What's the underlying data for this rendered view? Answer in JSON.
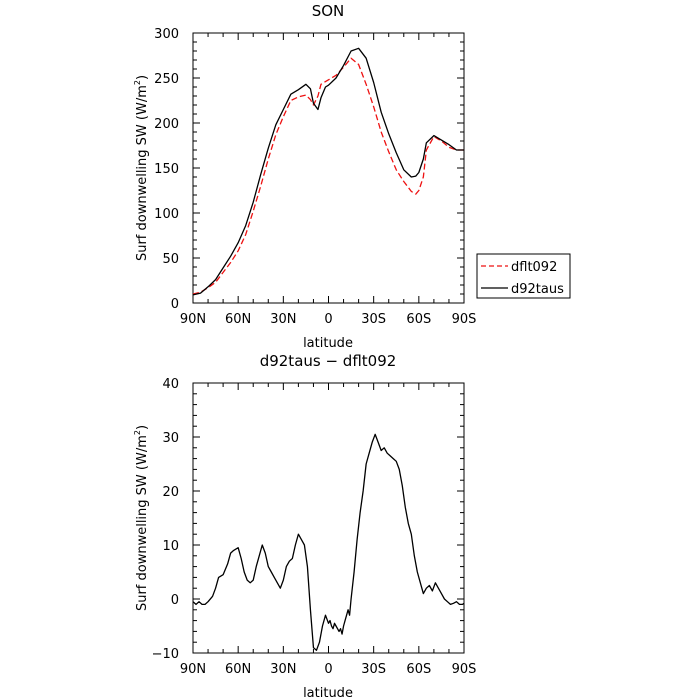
{
  "chart_data": [
    {
      "type": "line",
      "title": "SON",
      "xlabel": "latitude",
      "ylabel": "Surf downwelling SW (W/m²)",
      "ylabel_main": "Surf downwelling SW (W/m",
      "ylabel_sup": "2",
      "ylabel_close": ")",
      "xlim": [
        90,
        -90
      ],
      "ylim": [
        0,
        300
      ],
      "x_ticks": [
        90,
        60,
        30,
        0,
        -30,
        -60,
        -90
      ],
      "x_tick_labels": [
        "90N",
        "60N",
        "30N",
        "0",
        "30S",
        "60S",
        "90S"
      ],
      "y_ticks": [
        0,
        50,
        100,
        150,
        200,
        250,
        300
      ],
      "y_tick_labels": [
        "0",
        "50",
        "100",
        "150",
        "200",
        "250",
        "300"
      ],
      "legend": {
        "placement": "right-outside",
        "entries": [
          "dflt092",
          "d92taus"
        ]
      },
      "series": [
        {
          "name": "dflt092",
          "color": "#ee1111",
          "dash": "dashed",
          "x": [
            90,
            85,
            80,
            75,
            70,
            65,
            60,
            55,
            50,
            45,
            40,
            35,
            30,
            25,
            20,
            15,
            12,
            10,
            7,
            5,
            2,
            0,
            -5,
            -10,
            -15,
            -20,
            -25,
            -30,
            -35,
            -40,
            -45,
            -50,
            -55,
            -58,
            -60,
            -63,
            -65,
            -70,
            -75,
            -80,
            -85,
            -90
          ],
          "y": [
            10,
            12,
            17,
            23,
            34,
            45,
            58,
            76,
            102,
            130,
            160,
            187,
            207,
            225,
            229,
            231,
            226,
            220,
            230,
            243,
            246,
            248,
            253,
            262,
            272,
            265,
            243,
            218,
            190,
            168,
            148,
            135,
            124,
            121,
            125,
            140,
            170,
            185,
            180,
            173,
            170,
            170
          ]
        },
        {
          "name": "d92taus",
          "color": "#000000",
          "dash": "solid",
          "x": [
            90,
            85,
            80,
            75,
            70,
            65,
            60,
            55,
            50,
            45,
            40,
            35,
            30,
            25,
            20,
            15,
            12,
            10,
            7,
            5,
            2,
            0,
            -5,
            -10,
            -15,
            -20,
            -25,
            -30,
            -35,
            -40,
            -45,
            -50,
            -55,
            -58,
            -60,
            -63,
            -65,
            -70,
            -75,
            -80,
            -85,
            -90
          ],
          "y": [
            9,
            11,
            18,
            26,
            39,
            52,
            67,
            86,
            112,
            143,
            172,
            198,
            215,
            232,
            237,
            243,
            238,
            222,
            215,
            228,
            240,
            242,
            250,
            264,
            280,
            283,
            272,
            245,
            212,
            188,
            167,
            148,
            140,
            141,
            145,
            160,
            178,
            186,
            181,
            176,
            170,
            170
          ]
        }
      ]
    },
    {
      "type": "line",
      "title": "d92taus − dflt092",
      "xlabel": "latitude",
      "ylabel": "Surf downwelling SW (W/m²)",
      "ylabel_main": "Surf downwelling SW (W/m",
      "ylabel_sup": "2",
      "ylabel_close": ")",
      "xlim": [
        90,
        -90
      ],
      "ylim": [
        -10,
        40
      ],
      "x_ticks": [
        90,
        60,
        30,
        0,
        -30,
        -60,
        -90
      ],
      "x_tick_labels": [
        "90N",
        "60N",
        "30N",
        "0",
        "30S",
        "60S",
        "90S"
      ],
      "y_ticks": [
        -10,
        0,
        10,
        20,
        30,
        40
      ],
      "y_tick_labels": [
        "−10",
        "0",
        "10",
        "20",
        "30",
        "40"
      ],
      "series": [
        {
          "color": "#000000",
          "dash": "solid",
          "x": [
            90,
            88,
            86,
            84,
            82,
            80,
            77,
            75,
            73,
            70,
            67,
            65,
            63,
            60,
            58,
            56,
            54,
            52,
            50,
            48,
            46,
            44,
            42,
            40,
            38,
            36,
            34,
            32,
            30,
            28,
            26,
            24,
            22,
            20,
            18,
            16,
            14,
            12,
            10,
            8,
            6,
            4,
            2,
            0,
            -1,
            -2,
            -3,
            -4,
            -5,
            -6,
            -7,
            -8,
            -9,
            -10,
            -11,
            -12,
            -13,
            -14,
            -15,
            -17,
            -19,
            -21,
            -23,
            -25,
            -27,
            -29,
            -31,
            -33,
            -35,
            -37,
            -39,
            -41,
            -43,
            -45,
            -47,
            -49,
            -51,
            -53,
            -55,
            -57,
            -59,
            -61,
            -63,
            -65,
            -67,
            -69,
            -71,
            -73,
            -75,
            -77,
            -79,
            -81,
            -83,
            -85,
            -87,
            -89,
            -90
          ],
          "y": [
            -0.5,
            -1,
            -0.5,
            -1,
            -1,
            -0.5,
            0.5,
            2,
            4,
            4.5,
            6.5,
            8.5,
            9,
            9.5,
            7.5,
            5,
            3.5,
            3,
            3.5,
            6,
            8,
            10,
            8.5,
            6,
            5,
            4,
            3,
            2,
            3.5,
            6,
            7,
            7.5,
            10,
            12,
            11,
            10,
            6,
            -2,
            -9,
            -9.5,
            -8,
            -5,
            -3,
            -4.5,
            -4,
            -5,
            -5.5,
            -4.5,
            -5,
            -5.5,
            -6,
            -5.5,
            -6.5,
            -5,
            -4,
            -3,
            -2,
            -3,
            0,
            5,
            11,
            16,
            20,
            25,
            27,
            29,
            30.5,
            29,
            27.5,
            28,
            27,
            26.5,
            26,
            25.5,
            24,
            21,
            17,
            14,
            12,
            8,
            5,
            3,
            1,
            2,
            2.5,
            1.5,
            3,
            2,
            1,
            0,
            -0.5,
            -1,
            -0.8,
            -0.5,
            -1,
            -1,
            -0.8
          ]
        }
      ]
    }
  ]
}
